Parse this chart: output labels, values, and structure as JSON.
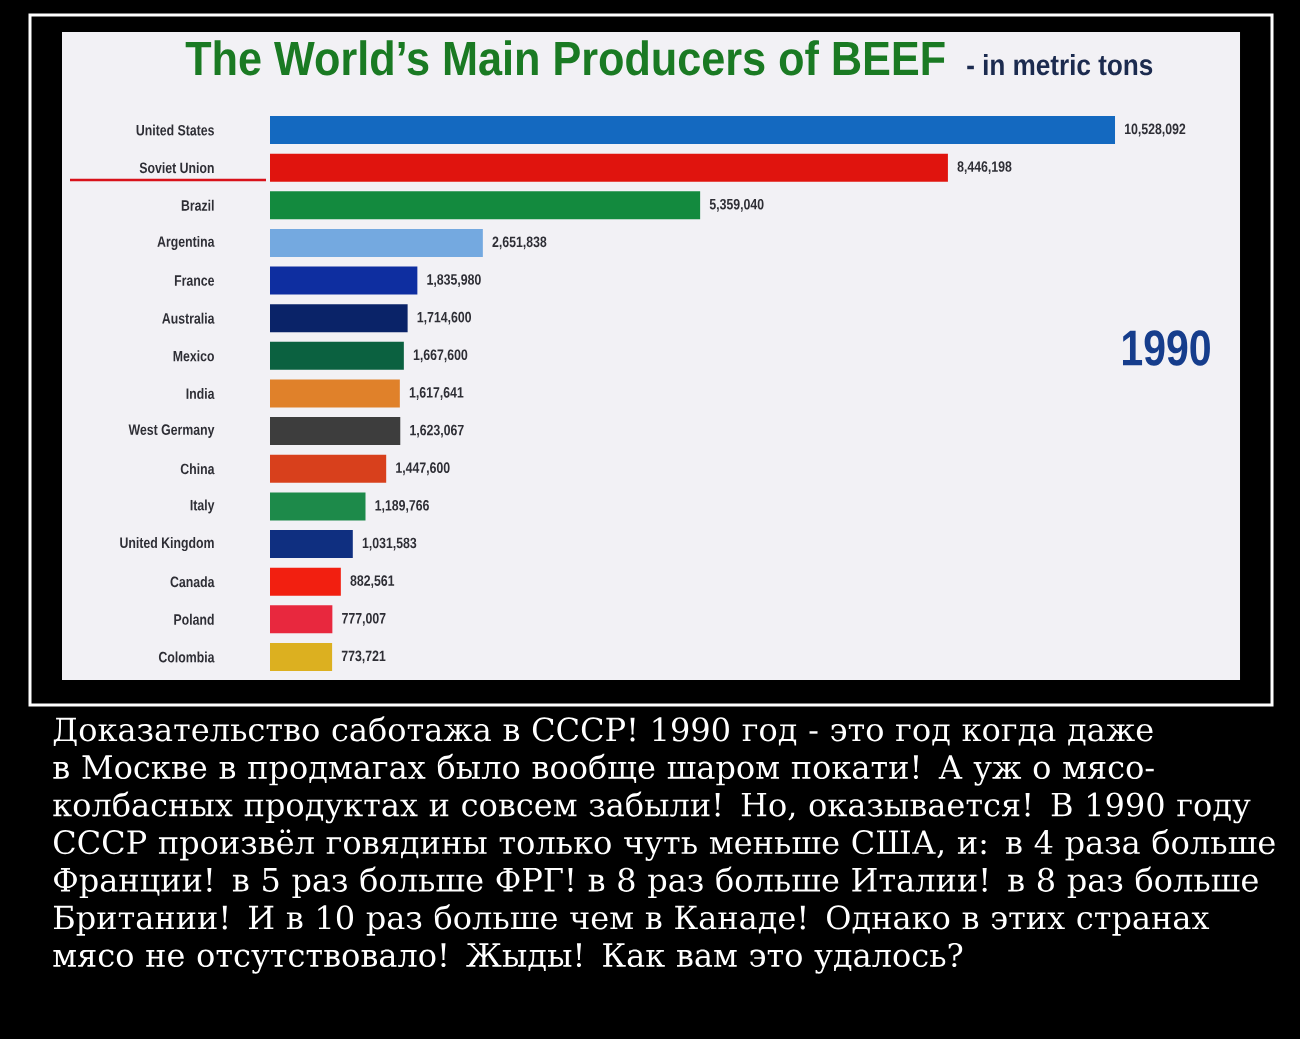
{
  "chart_data": {
    "type": "bar",
    "orientation": "horizontal",
    "title": "The World’s Main Producers of BEEF",
    "subtitle": "- in metric tons",
    "categories": [
      "United States",
      "Soviet Union",
      "Brazil",
      "Argentina",
      "France",
      "Australia",
      "Mexico",
      "India",
      "West Germany",
      "China",
      "Italy",
      "United Kingdom",
      "Canada",
      "Poland",
      "Colombia"
    ],
    "values": [
      10528092,
      8446198,
      5359040,
      2651838,
      1835980,
      1714600,
      1667600,
      1617641,
      1623067,
      1447600,
      1189766,
      1031583,
      882561,
      777007,
      773721
    ],
    "colors": [
      "#1469c0",
      "#e0140e",
      "#138a3e",
      "#74a9e0",
      "#0e2ea0",
      "#0a2368",
      "#0b6140",
      "#e0812a",
      "#3d3d3d",
      "#d8401c",
      "#1d8a4a",
      "#0f2f80",
      "#f21f10",
      "#e8283e",
      "#dcb020"
    ],
    "value_labels": [
      "10,528,092",
      "8,446,198",
      "5,359,040",
      "2,651,838",
      "1,835,980",
      "1,714,600",
      "1,667,600",
      "1,617,641",
      "1,623,067",
      "1,447,600",
      "1,189,766",
      "1,031,583",
      "882,561",
      "777,007",
      "773,721"
    ],
    "tick_labels": "y",
    "annotations": [
      "1990",
      "Доказательство саботажа в СССР! 1990 год - это год когда даже в Москве в продмагах было вообще шаром покати! А уж о мясо-колбасных продуктах и совсем забыли! Но, оказывается! В 1990 году СССР произвёл говядины только чуть меньше США, и: в 4 раза больше Франции! в 5 раз больше ФРГ! в 8 раз больше Италии! в 8 раз больше Британии! И в 10 раз больше чем в Канаде! Однако в этих странах мясо не отсутствовало! Жыды! Как вам это удалось?"
    ]
  }
}
